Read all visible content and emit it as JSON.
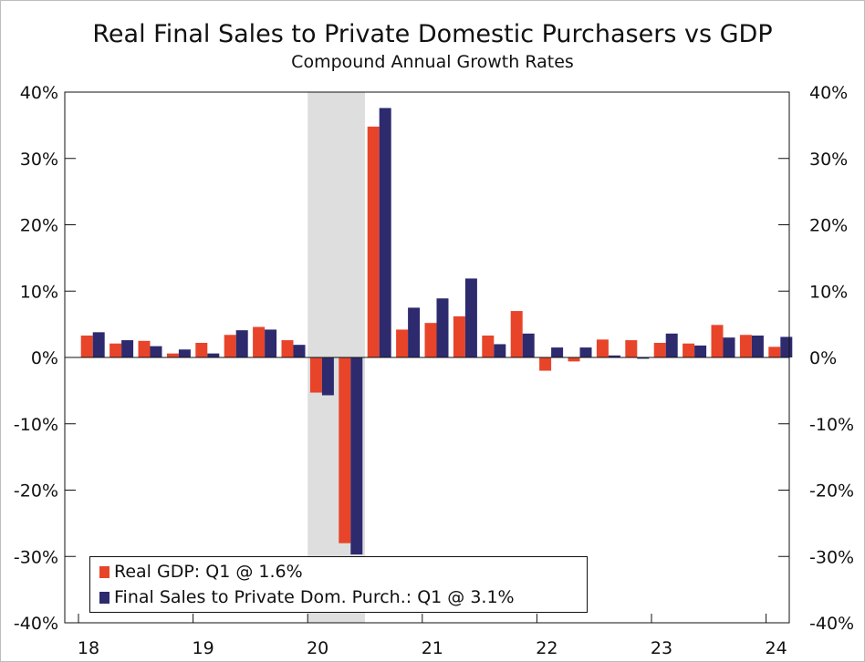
{
  "chart_data": {
    "type": "bar",
    "title": "Real Final Sales to Private Domestic Purchasers vs GDP",
    "subtitle": "Compound Annual Growth Rates",
    "xlabel": "",
    "ylabel": "",
    "ylim": [
      -40,
      40
    ],
    "yticks": [
      -40,
      -30,
      -20,
      -10,
      0,
      10,
      20,
      30,
      40
    ],
    "ytick_labels": [
      "-40%",
      "-30%",
      "-20%",
      "-10%",
      "0%",
      "10%",
      "20%",
      "30%",
      "40%"
    ],
    "year_labels": [
      {
        "label": "18",
        "quarter_index": 0
      },
      {
        "label": "19",
        "quarter_index": 4
      },
      {
        "label": "20",
        "quarter_index": 8
      },
      {
        "label": "21",
        "quarter_index": 12
      },
      {
        "label": "22",
        "quarter_index": 16
      },
      {
        "label": "23",
        "quarter_index": 20
      },
      {
        "label": "24",
        "quarter_index": 24
      }
    ],
    "categories": [
      "2018Q1",
      "2018Q2",
      "2018Q3",
      "2018Q4",
      "2019Q1",
      "2019Q2",
      "2019Q3",
      "2019Q4",
      "2020Q1",
      "2020Q2",
      "2020Q3",
      "2020Q4",
      "2021Q1",
      "2021Q2",
      "2021Q3",
      "2021Q4",
      "2022Q1",
      "2022Q2",
      "2022Q3",
      "2022Q4",
      "2023Q1",
      "2023Q2",
      "2023Q3",
      "2023Q4",
      "2024Q1"
    ],
    "series": [
      {
        "name": "Real GDP",
        "color": "#e8442a",
        "values": [
          3.3,
          2.1,
          2.5,
          0.6,
          2.2,
          3.4,
          4.6,
          2.6,
          -5.3,
          -28.0,
          34.8,
          4.2,
          5.2,
          6.2,
          3.3,
          7.0,
          -2.0,
          -0.6,
          2.7,
          2.6,
          2.2,
          2.1,
          4.9,
          3.4,
          1.6
        ]
      },
      {
        "name": "Final Sales to Private Dom. Purch.",
        "color": "#2e2a6e",
        "values": [
          3.8,
          2.6,
          1.7,
          1.2,
          0.6,
          4.1,
          4.2,
          1.9,
          -5.7,
          -29.7,
          37.6,
          7.5,
          8.9,
          11.9,
          2.0,
          3.6,
          1.5,
          1.5,
          0.3,
          -0.2,
          3.6,
          1.8,
          3.0,
          3.3,
          3.1
        ]
      }
    ],
    "recession_shading": {
      "start": "2020Q1",
      "end": "2020Q2"
    },
    "legend_position": "bottom-left",
    "legend_entries": [
      "Real GDP: Q1 @ 1.6%",
      "Final Sales to Private Dom. Purch.: Q1 @ 3.1%"
    ]
  }
}
